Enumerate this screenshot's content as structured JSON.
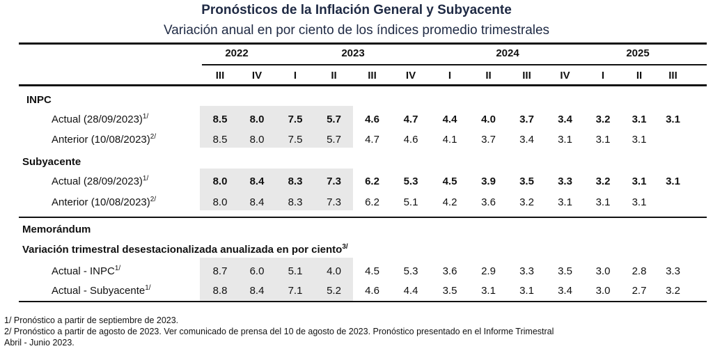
{
  "title": "Pronósticos de la Inflación General y Subyacente",
  "subtitle": "Variación anual en por ciento de los índices promedio trimestrales",
  "years": [
    "2022",
    "2023",
    "2024",
    "2025"
  ],
  "quarters": [
    "III",
    "IV",
    "I",
    "II",
    "III",
    "IV",
    "I",
    "II",
    "III",
    "IV",
    "I",
    "II",
    "III"
  ],
  "sections": {
    "inpc": {
      "label": "INPC",
      "actual": {
        "label": "Actual (28/09/2023)",
        "note": "1/",
        "values": [
          "8.5",
          "8.0",
          "7.5",
          "5.7",
          "4.6",
          "4.7",
          "4.4",
          "4.0",
          "3.7",
          "3.4",
          "3.2",
          "3.1",
          "3.1"
        ]
      },
      "anterior": {
        "label": "Anterior (10/08/2023)",
        "note": "2/",
        "values": [
          "8.5",
          "8.0",
          "7.5",
          "5.7",
          "4.7",
          "4.6",
          "4.1",
          "3.7",
          "3.4",
          "3.1",
          "3.1",
          "3.1",
          ""
        ]
      }
    },
    "sub": {
      "label": "Subyacente",
      "actual": {
        "label": "Actual (28/09/2023)",
        "note": "1/",
        "values": [
          "8.0",
          "8.4",
          "8.3",
          "7.3",
          "6.2",
          "5.3",
          "4.5",
          "3.9",
          "3.5",
          "3.3",
          "3.2",
          "3.1",
          "3.1"
        ]
      },
      "anterior": {
        "label": "Anterior (10/08/2023)",
        "note": "2/",
        "values": [
          "8.0",
          "8.4",
          "8.3",
          "7.3",
          "6.2",
          "5.1",
          "4.2",
          "3.6",
          "3.2",
          "3.1",
          "3.1",
          "3.1",
          ""
        ]
      }
    },
    "memo": {
      "label": "Memorándum",
      "sublabel": "Variación trimestral desestacionalizada anualizada en por ciento",
      "subnote": "3/",
      "inpc": {
        "label": "Actual - INPC",
        "note": "1/",
        "values": [
          "8.7",
          "6.0",
          "5.1",
          "4.0",
          "4.5",
          "5.3",
          "3.6",
          "2.9",
          "3.3",
          "3.5",
          "3.0",
          "2.8",
          "3.3"
        ]
      },
      "sub": {
        "label": "Actual - Subyacente",
        "note": "1/",
        "values": [
          "8.8",
          "8.4",
          "7.1",
          "5.2",
          "4.6",
          "4.4",
          "3.5",
          "3.1",
          "3.1",
          "3.4",
          "3.0",
          "2.7",
          "3.2"
        ]
      }
    }
  },
  "footnotes": [
    "1/ Pronóstico a partir de septiembre de 2023.",
    "2/ Pronóstico a partir de agosto de 2023. Ver comunicado de prensa del 10 de agosto de 2023. Pronóstico presentado en el Informe Trimestral",
    "Abril - Junio 2023."
  ],
  "colors": {
    "title": "#1f2a44",
    "shade": "#e8e8e8"
  }
}
